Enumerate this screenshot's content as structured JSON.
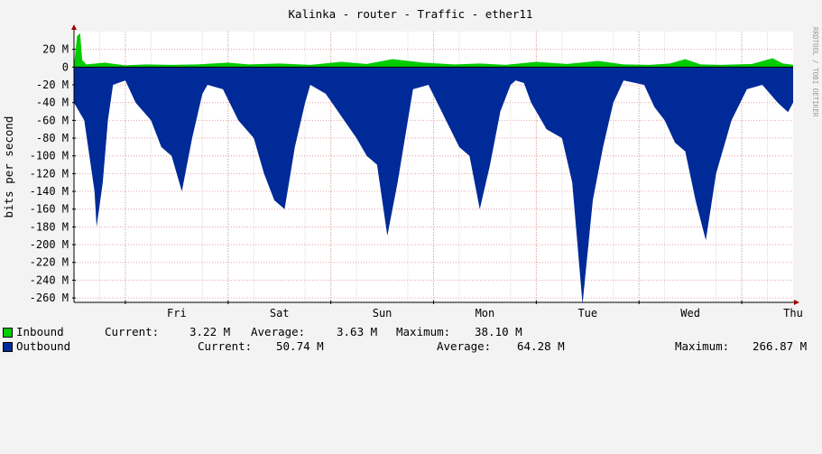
{
  "chart_data": {
    "type": "area",
    "title": "Kalinka - router - Traffic - ether11",
    "ylabel": "bits per second",
    "watermark": "RRDTOOL / TOBI OETIKER",
    "xlim": [
      0,
      7
    ],
    "ylim": [
      -265000000,
      40000000
    ],
    "x_tick_labels": [
      "Fri",
      "Sat",
      "Sun",
      "Mon",
      "Tue",
      "Wed",
      "Thu"
    ],
    "y_tick_labels": [
      "20 M",
      "0",
      "-20 M",
      "-40 M",
      "-60 M",
      "-80 M",
      "-100 M",
      "-120 M",
      "-140 M",
      "-160 M",
      "-180 M",
      "-200 M",
      "-220 M",
      "-240 M",
      "-260 M"
    ],
    "grid": true,
    "series": [
      {
        "name": "Inbound",
        "color": "#00CC00",
        "x": [
          0.0,
          0.03,
          0.06,
          0.08,
          0.12,
          0.3,
          0.5,
          0.7,
          0.95,
          1.2,
          1.5,
          1.7,
          2.0,
          2.3,
          2.6,
          2.85,
          3.1,
          3.4,
          3.7,
          3.95,
          4.2,
          4.5,
          4.8,
          5.1,
          5.35,
          5.6,
          5.8,
          5.95,
          6.1,
          6.3,
          6.6,
          6.8,
          6.9,
          6.96,
          7.0
        ],
        "values": [
          2000000,
          35000000,
          38100000,
          8000000,
          3000000,
          5000000,
          2000000,
          3000000,
          2500000,
          3000000,
          5000000,
          3000000,
          4000000,
          2500000,
          6000000,
          3500000,
          9000000,
          5000000,
          3000000,
          4000000,
          2500000,
          6000000,
          3500000,
          7000000,
          3000000,
          2500000,
          4000000,
          9000000,
          3000000,
          2500000,
          3500000,
          10000000,
          4000000,
          3220000,
          2500000
        ]
      },
      {
        "name": "Outbound",
        "color": "#002A97",
        "x": [
          0.0,
          0.1,
          0.2,
          0.22,
          0.28,
          0.33,
          0.38,
          0.5,
          0.6,
          0.75,
          0.85,
          0.95,
          1.05,
          1.15,
          1.25,
          1.3,
          1.45,
          1.6,
          1.75,
          1.85,
          1.95,
          2.05,
          2.15,
          2.25,
          2.3,
          2.45,
          2.6,
          2.75,
          2.85,
          2.95,
          3.05,
          3.15,
          3.25,
          3.3,
          3.45,
          3.6,
          3.75,
          3.85,
          3.95,
          4.05,
          4.15,
          4.25,
          4.3,
          4.38,
          4.45,
          4.6,
          4.75,
          4.85,
          4.95,
          5.05,
          5.15,
          5.25,
          5.35,
          5.55,
          5.65,
          5.75,
          5.85,
          5.95,
          6.05,
          6.15,
          6.25,
          6.4,
          6.55,
          6.7,
          6.85,
          6.95,
          7.0
        ],
        "values": [
          -40000000,
          -60000000,
          -140000000,
          -180000000,
          -130000000,
          -60000000,
          -20000000,
          -15000000,
          -40000000,
          -60000000,
          -90000000,
          -100000000,
          -140000000,
          -80000000,
          -30000000,
          -20000000,
          -25000000,
          -60000000,
          -80000000,
          -120000000,
          -150000000,
          -160000000,
          -90000000,
          -40000000,
          -20000000,
          -30000000,
          -55000000,
          -80000000,
          -100000000,
          -110000000,
          -190000000,
          -130000000,
          -60000000,
          -25000000,
          -20000000,
          -55000000,
          -90000000,
          -100000000,
          -160000000,
          -110000000,
          -50000000,
          -20000000,
          -15000000,
          -18000000,
          -40000000,
          -70000000,
          -80000000,
          -130000000,
          -266870000,
          -150000000,
          -90000000,
          -40000000,
          -15000000,
          -20000000,
          -45000000,
          -60000000,
          -85000000,
          -95000000,
          -150000000,
          -195000000,
          -120000000,
          -60000000,
          -25000000,
          -20000000,
          -40000000,
          -50740000,
          -40000000
        ]
      }
    ]
  },
  "legend": {
    "inbound": {
      "label": "Inbound",
      "current_label": "Current:",
      "current": "3.22 M",
      "average_label": "Average:",
      "average": "3.63 M",
      "maximum_label": "Maximum:",
      "maximum": "38.10 M"
    },
    "outbound": {
      "label": "Outbound",
      "current_label": "Current:",
      "current": "50.74 M",
      "average_label": "Average:",
      "average": "64.28 M",
      "maximum_label": "Maximum:",
      "maximum": "266.87 M"
    }
  }
}
